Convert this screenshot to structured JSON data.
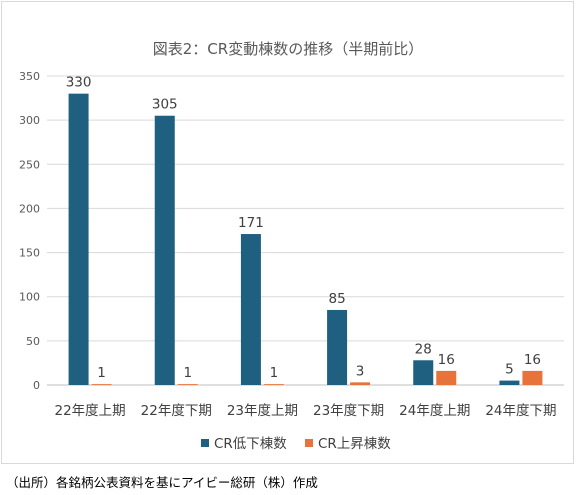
{
  "chart_data": {
    "type": "bar",
    "title": "図表2：CR変動棟数の推移（半期前比）",
    "categories": [
      "22年度上期",
      "22年度下期",
      "23年度上期",
      "23年度下期",
      "24年度上期",
      "24年度下期"
    ],
    "series": [
      {
        "name": "CR低下棟数",
        "values": [
          330,
          305,
          171,
          85,
          28,
          5
        ],
        "color": "#1f5f7f"
      },
      {
        "name": "CR上昇棟数",
        "values": [
          1,
          1,
          1,
          3,
          16,
          16
        ],
        "color": "#e8733a"
      }
    ],
    "ylim": [
      0,
      350
    ],
    "yticks": [
      0,
      50,
      100,
      150,
      200,
      250,
      300,
      350
    ],
    "grid": true,
    "legend": "bottom",
    "data_labels": true
  },
  "source": "（出所）各銘柄公表資料を基にアイビー総研（株）作成"
}
